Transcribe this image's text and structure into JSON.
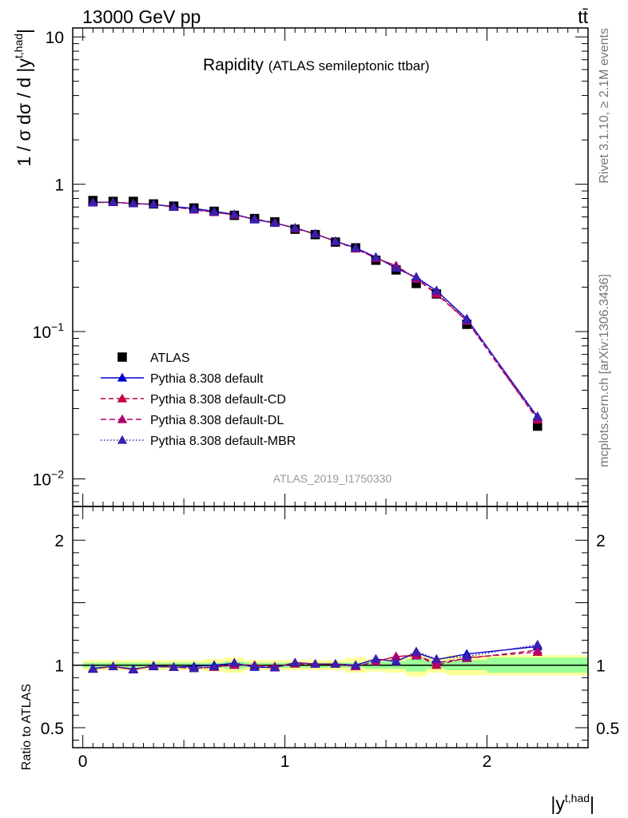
{
  "header": {
    "left": "13000 GeV pp",
    "right": "tt̄"
  },
  "side_text": {
    "rivet": "Rivet 3.1.10, ≥ 2.1M events",
    "mcplots": "mcplots.cern.ch [arXiv:1306.3436]"
  },
  "analysis_id": "ATLAS_2019_I1750330",
  "colors": {
    "data": "#000000",
    "default": "#0000cc",
    "cd": "#c0003c",
    "dl": "#b0006e",
    "mbr": "#3a1fb0",
    "band_inner": "#99ff99",
    "band_outer": "#ffff99"
  },
  "chart_data": [
    {
      "type": "line",
      "panel": "main",
      "title": "Rapidity",
      "subtitle": "(ATLAS semileptonic ttbar)",
      "ylabel": "1 / σ dσ / d |y",
      "ylabel_sup": "t,had",
      "ylabel_tail": "|",
      "yscale": "log",
      "xlim": [
        -0.05,
        2.5
      ],
      "ylim": [
        0.0065,
        11.5
      ],
      "ytick_labels": [
        {
          "value": 10,
          "base": "10",
          "exp": ""
        },
        {
          "value": 1,
          "base": "1",
          "exp": ""
        },
        {
          "value": 0.1,
          "base": "10",
          "exp": "−1"
        },
        {
          "value": 0.01,
          "base": "10",
          "exp": "−2"
        }
      ],
      "x": [
        0.05,
        0.15,
        0.25,
        0.35,
        0.45,
        0.55,
        0.65,
        0.75,
        0.85,
        0.95,
        1.05,
        1.15,
        1.25,
        1.35,
        1.45,
        1.55,
        1.65,
        1.75,
        1.9,
        2.25
      ],
      "bin_edges": [
        0.0,
        0.1,
        0.2,
        0.3,
        0.4,
        0.5,
        0.6,
        0.7,
        0.8,
        0.9,
        1.0,
        1.1,
        1.2,
        1.3,
        1.4,
        1.5,
        1.6,
        1.7,
        1.8,
        2.0,
        2.5
      ],
      "legend": {
        "data": "ATLAS",
        "default": "Pythia 8.308 default",
        "cd": "Pythia 8.308 default-CD",
        "dl": "Pythia 8.308 default-DL",
        "mbr": "Pythia 8.308 default-MBR"
      },
      "series": [
        {
          "name": "ATLAS",
          "key": "data",
          "values": [
            0.775,
            0.765,
            0.765,
            0.735,
            0.71,
            0.69,
            0.655,
            0.615,
            0.585,
            0.555,
            0.495,
            0.455,
            0.405,
            0.37,
            0.305,
            0.262,
            0.212,
            0.18,
            0.112,
            0.0228
          ]
        },
        {
          "name": "Pythia 8.308 default",
          "key": "default",
          "values": [
            0.755,
            0.755,
            0.74,
            0.73,
            0.705,
            0.685,
            0.655,
            0.625,
            0.575,
            0.545,
            0.505,
            0.46,
            0.41,
            0.37,
            0.32,
            0.27,
            0.232,
            0.19,
            0.122,
            0.0262
          ]
        },
        {
          "name": "Pythia 8.308 default-CD",
          "key": "cd",
          "values": [
            0.75,
            0.755,
            0.74,
            0.73,
            0.7,
            0.675,
            0.645,
            0.62,
            0.58,
            0.55,
            0.5,
            0.46,
            0.41,
            0.365,
            0.315,
            0.28,
            0.228,
            0.18,
            0.118,
            0.0252
          ]
        },
        {
          "name": "Pythia 8.308 default-DL",
          "key": "dl",
          "values": [
            0.75,
            0.755,
            0.74,
            0.73,
            0.7,
            0.67,
            0.645,
            0.62,
            0.58,
            0.545,
            0.505,
            0.46,
            0.41,
            0.365,
            0.315,
            0.28,
            0.228,
            0.183,
            0.118,
            0.0255
          ]
        },
        {
          "name": "Pythia 8.308 default-MBR",
          "key": "mbr",
          "values": [
            0.75,
            0.755,
            0.74,
            0.73,
            0.7,
            0.675,
            0.65,
            0.625,
            0.58,
            0.545,
            0.505,
            0.46,
            0.41,
            0.37,
            0.32,
            0.27,
            0.235,
            0.19,
            0.12,
            0.0266
          ]
        }
      ]
    },
    {
      "type": "line",
      "panel": "ratio",
      "ylabel": "Ratio to ATLAS",
      "xlabel": "|y",
      "xlabel_sup": "t,had",
      "xlabel_tail": "|",
      "xlim": [
        -0.05,
        2.5
      ],
      "ylim": [
        0.34,
        2.27
      ],
      "xtick_labels": [
        {
          "value": 0,
          "label": "0"
        },
        {
          "value": 1,
          "label": "1"
        },
        {
          "value": 2,
          "label": "2"
        }
      ],
      "ytick_labels": [
        {
          "value": 2,
          "label": "2"
        },
        {
          "value": 1,
          "label": "1"
        },
        {
          "value": 0.5,
          "label": "0.5"
        }
      ],
      "band_inner": [
        0.02,
        0.02,
        0.02,
        0.02,
        0.02,
        0.02,
        0.02,
        0.03,
        0.02,
        0.02,
        0.02,
        0.02,
        0.02,
        0.02,
        0.03,
        0.03,
        0.05,
        0.03,
        0.04,
        0.06
      ],
      "band_outer": [
        0.04,
        0.04,
        0.04,
        0.04,
        0.04,
        0.04,
        0.05,
        0.06,
        0.04,
        0.04,
        0.04,
        0.04,
        0.04,
        0.06,
        0.05,
        0.06,
        0.09,
        0.06,
        0.08,
        0.08
      ],
      "series": [
        {
          "name": "Pythia 8.308 default",
          "key": "default",
          "values": [
            0.975,
            0.99,
            0.97,
            0.99,
            0.985,
            0.99,
            1.0,
            1.015,
            0.985,
            0.98,
            1.02,
            1.01,
            1.01,
            1.0,
            1.05,
            1.03,
            1.1,
            1.045,
            1.09,
            1.15
          ]
        },
        {
          "name": "Pythia 8.308 default-CD",
          "key": "cd",
          "values": [
            0.97,
            0.99,
            0.965,
            0.995,
            0.985,
            0.975,
            0.985,
            1.005,
            1.0,
            0.99,
            1.01,
            1.01,
            1.01,
            0.99,
            1.03,
            1.07,
            1.08,
            1.0,
            1.06,
            1.105
          ]
        },
        {
          "name": "Pythia 8.308 default-DL",
          "key": "dl",
          "values": [
            0.97,
            0.99,
            0.965,
            0.995,
            0.985,
            0.975,
            0.985,
            1.0,
            1.0,
            0.985,
            1.02,
            1.01,
            1.01,
            0.99,
            1.03,
            1.07,
            1.075,
            1.02,
            1.055,
            1.12
          ]
        },
        {
          "name": "Pythia 8.308 default-MBR",
          "key": "mbr",
          "values": [
            0.97,
            0.99,
            0.965,
            0.995,
            0.985,
            0.975,
            0.99,
            1.02,
            0.99,
            0.98,
            1.02,
            1.01,
            1.01,
            1.0,
            1.05,
            1.03,
            1.11,
            1.05,
            1.07,
            1.165
          ]
        }
      ]
    }
  ]
}
